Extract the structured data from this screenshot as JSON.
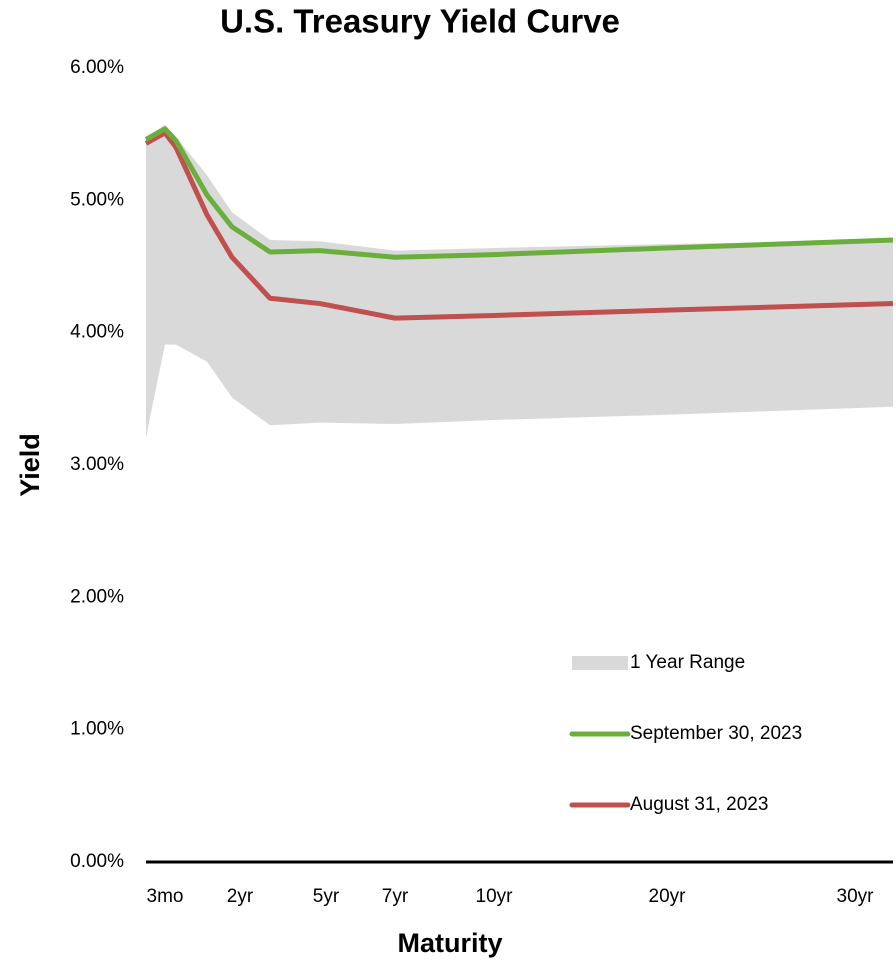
{
  "chart_data": {
    "type": "line",
    "title": "U.S. Treasury Yield Curve",
    "x_label": "Maturity",
    "y_label": "Yield",
    "categories": [
      null,
      "3mo",
      null,
      null,
      "2yr",
      null,
      "5yr",
      "7yr",
      "10yr",
      "20yr",
      "30yr"
    ],
    "range": {
      "name": "1 Year Range",
      "color": "#d9d9d9",
      "low": [
        3.21,
        3.91,
        3.91,
        3.78,
        3.51,
        3.3,
        3.32,
        3.31,
        3.34,
        3.38,
        3.44
      ],
      "high": [
        5.48,
        5.57,
        5.48,
        5.19,
        4.91,
        4.7,
        4.69,
        4.62,
        4.64,
        4.67,
        4.7
      ]
    },
    "series": [
      {
        "name": "September 30, 2023",
        "color": "#6aaf3d",
        "values": [
          5.46,
          5.54,
          5.45,
          5.04,
          4.8,
          4.61,
          4.62,
          4.57,
          4.59,
          4.64,
          4.7
        ]
      },
      {
        "name": "August 31, 2023",
        "color": "#c0504d",
        "values": [
          5.43,
          5.51,
          5.4,
          4.89,
          4.57,
          4.26,
          4.22,
          4.11,
          4.13,
          4.17,
          4.22
        ]
      }
    ],
    "ylim": [
      0,
      6
    ],
    "yticks": [
      {
        "value": 0,
        "label": "0.00%"
      },
      {
        "value": 1,
        "label": "1.00%"
      },
      {
        "value": 2,
        "label": "2.00%"
      },
      {
        "value": 3,
        "label": "3.00%"
      },
      {
        "value": 4,
        "label": "4.00%"
      },
      {
        "value": 5,
        "label": "5.00%"
      },
      {
        "value": 6,
        "label": "6.00%"
      }
    ],
    "legend": "lower right"
  }
}
